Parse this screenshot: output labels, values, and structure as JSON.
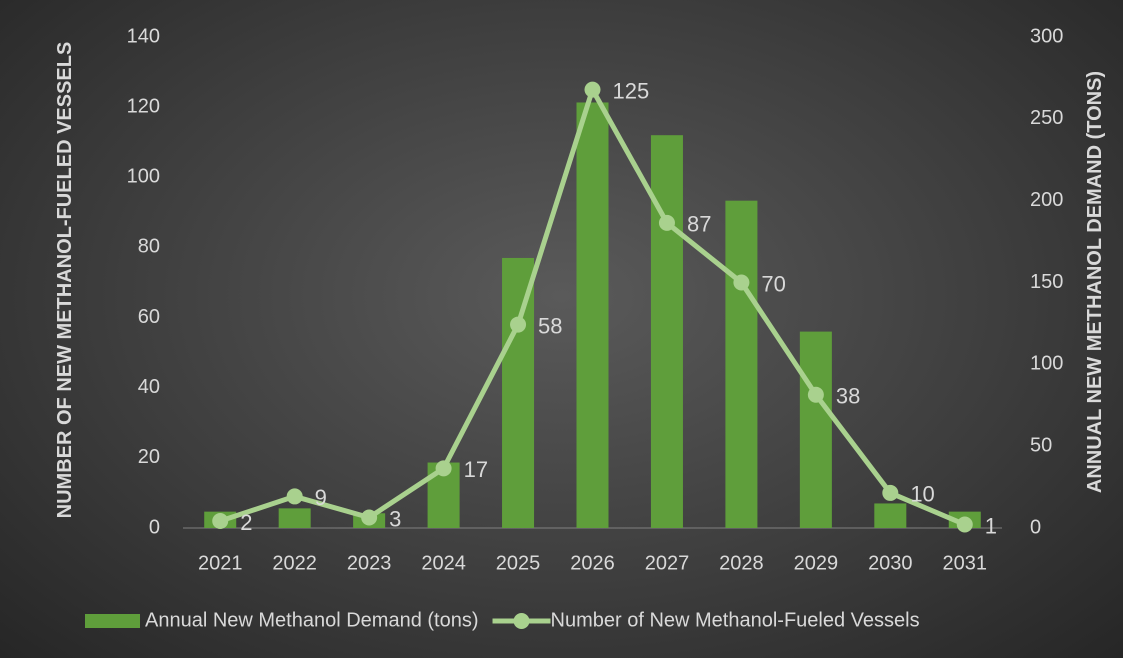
{
  "chart_data": {
    "type": "bar-line",
    "ylabel": "NUMBER OF NEW METHANOL-FUELED VESSELS",
    "y2label": "ANNUAL NEW METHANOL DEMAND (TONS)",
    "categories": [
      "2021",
      "2022",
      "2023",
      "2024",
      "2025",
      "2026",
      "2027",
      "2028",
      "2029",
      "2030",
      "2031"
    ],
    "series": [
      {
        "name": "Annual New Methanol Demand (tons)",
        "type": "bar",
        "axis": "y2",
        "color": "#5f9e3b",
        "values": [
          10,
          12,
          9,
          40,
          165,
          260,
          240,
          200,
          120,
          15,
          10
        ]
      },
      {
        "name": "Number of New Methanol-Fueled Vessels",
        "type": "line",
        "axis": "y",
        "color": "#a9d18e",
        "values": [
          2,
          9,
          3,
          17,
          58,
          125,
          87,
          70,
          38,
          10,
          1
        ]
      }
    ],
    "ylim": [
      0,
      140
    ],
    "yticks": [
      0,
      20,
      40,
      60,
      80,
      100,
      120,
      140
    ],
    "y2lim": [
      0,
      300
    ],
    "y2ticks": [
      0,
      50,
      100,
      150,
      200,
      250,
      300
    ]
  }
}
